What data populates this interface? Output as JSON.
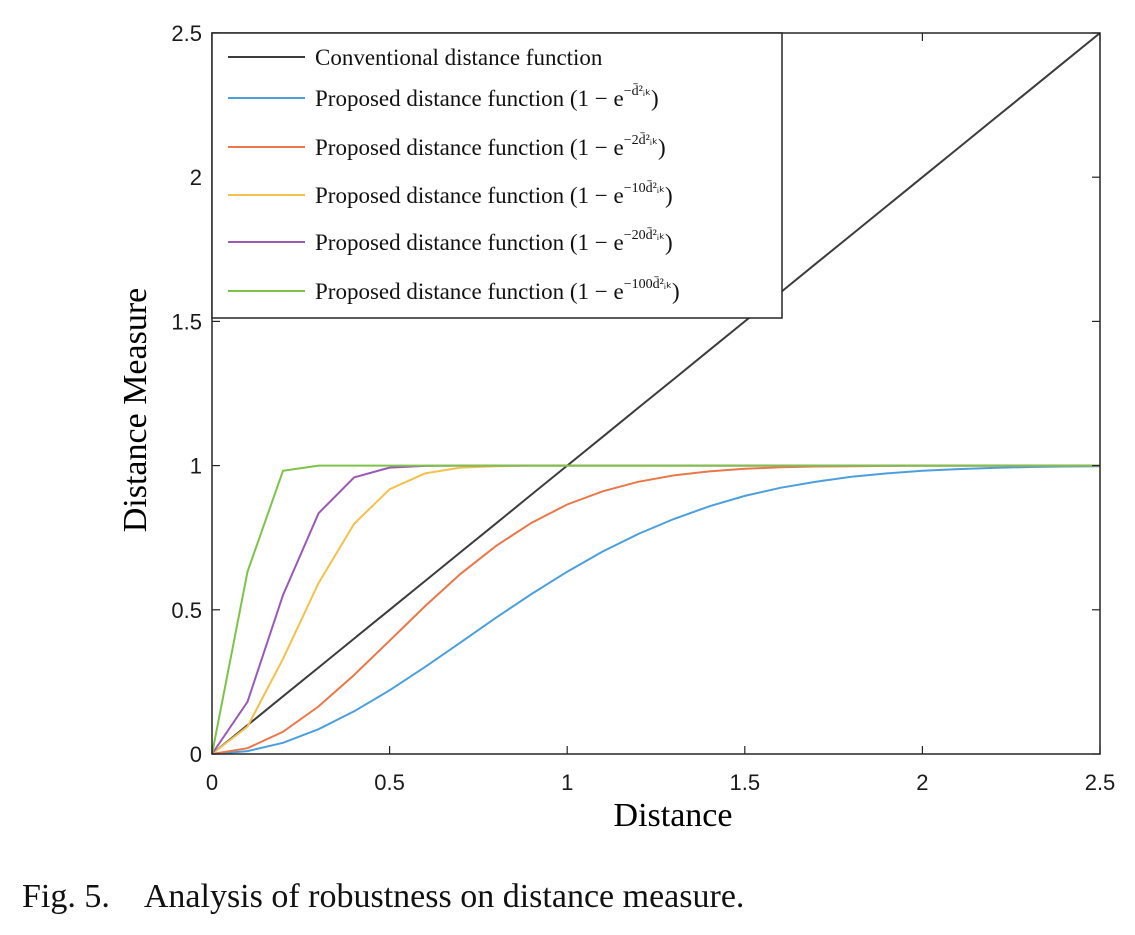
{
  "caption": {
    "label": "Fig. 5.",
    "text": "Analysis of robustness on distance measure."
  },
  "chart_data": {
    "type": "line",
    "title": "",
    "xlabel": "Distance",
    "ylabel": "Distance Measure",
    "xlim": [
      0,
      2.5
    ],
    "ylim": [
      0,
      2.5
    ],
    "xticks": [
      0,
      0.5,
      1,
      1.5,
      2,
      2.5
    ],
    "yticks": [
      0,
      0.5,
      1,
      1.5,
      2,
      2.5
    ],
    "xtick_labels": [
      "0",
      "0.5",
      "1",
      "1.5",
      "2",
      "2.5"
    ],
    "ytick_labels": [
      "0",
      "0.5",
      "1",
      "1.5",
      "2",
      "2.5"
    ],
    "grid": false,
    "legend_position": "top-left",
    "x": [
      0,
      0.1,
      0.2,
      0.3,
      0.4,
      0.5,
      0.6,
      0.7,
      0.8,
      0.9,
      1.0,
      1.1,
      1.2,
      1.3,
      1.4,
      1.5,
      1.6,
      1.7,
      1.8,
      1.9,
      2.0,
      2.1,
      2.2,
      2.3,
      2.4,
      2.5
    ],
    "series": [
      {
        "legend_main": "Conventional distance function",
        "legend_exp": "",
        "color": "#3c3c3c",
        "values": [
          0,
          0.1,
          0.2,
          0.3,
          0.4,
          0.5,
          0.6,
          0.7,
          0.8,
          0.9,
          1.0,
          1.1,
          1.2,
          1.3,
          1.4,
          1.5,
          1.6,
          1.7,
          1.8,
          1.9,
          2.0,
          2.1,
          2.2,
          2.3,
          2.4,
          2.5
        ]
      },
      {
        "legend_main": "Proposed distance function (1 − e",
        "legend_exp": "−d̄²ᵢₖ",
        "legend_close": ")",
        "color": "#4d9fdc",
        "values": [
          0,
          0.01,
          0.039,
          0.086,
          0.148,
          0.221,
          0.302,
          0.387,
          0.473,
          0.555,
          0.632,
          0.702,
          0.763,
          0.815,
          0.859,
          0.895,
          0.923,
          0.944,
          0.961,
          0.973,
          0.982,
          0.988,
          0.992,
          0.995,
          0.997,
          0.998
        ]
      },
      {
        "legend_main": "Proposed distance function (1 − e",
        "legend_exp": "−2d̄²ᵢₖ",
        "legend_close": ")",
        "color": "#e8784a",
        "values": [
          0,
          0.02,
          0.077,
          0.165,
          0.274,
          0.393,
          0.513,
          0.625,
          0.722,
          0.802,
          0.865,
          0.911,
          0.944,
          0.966,
          0.98,
          0.989,
          0.994,
          0.997,
          0.998,
          0.999,
          1.0,
          1.0,
          1.0,
          1.0,
          1.0,
          1.0
        ]
      },
      {
        "legend_main": "Proposed distance function (1 − e",
        "legend_exp": "−10d̄²ᵢₖ",
        "legend_close": ")",
        "color": "#f2c14e",
        "values": [
          0,
          0.095,
          0.33,
          0.593,
          0.798,
          0.918,
          0.973,
          0.993,
          0.998,
          1.0,
          1.0,
          1.0,
          1.0,
          1.0,
          1.0,
          1.0,
          1.0,
          1.0,
          1.0,
          1.0,
          1.0,
          1.0,
          1.0,
          1.0,
          1.0,
          1.0
        ]
      },
      {
        "legend_main": "Proposed distance function (1 − e",
        "legend_exp": "−20d̄²ᵢₖ",
        "legend_close": ")",
        "color": "#9b59b6",
        "values": [
          0,
          0.181,
          0.551,
          0.835,
          0.959,
          0.993,
          0.999,
          1.0,
          1.0,
          1.0,
          1.0,
          1.0,
          1.0,
          1.0,
          1.0,
          1.0,
          1.0,
          1.0,
          1.0,
          1.0,
          1.0,
          1.0,
          1.0,
          1.0,
          1.0,
          1.0
        ]
      },
      {
        "legend_main": "Proposed distance function (1 − e",
        "legend_exp": "−100d̄²ᵢₖ",
        "legend_close": ")",
        "color": "#7fc24a",
        "values": [
          0,
          0.632,
          0.982,
          1.0,
          1.0,
          1.0,
          1.0,
          1.0,
          1.0,
          1.0,
          1.0,
          1.0,
          1.0,
          1.0,
          1.0,
          1.0,
          1.0,
          1.0,
          1.0,
          1.0,
          1.0,
          1.0,
          1.0,
          1.0,
          1.0,
          1.0
        ]
      }
    ]
  }
}
